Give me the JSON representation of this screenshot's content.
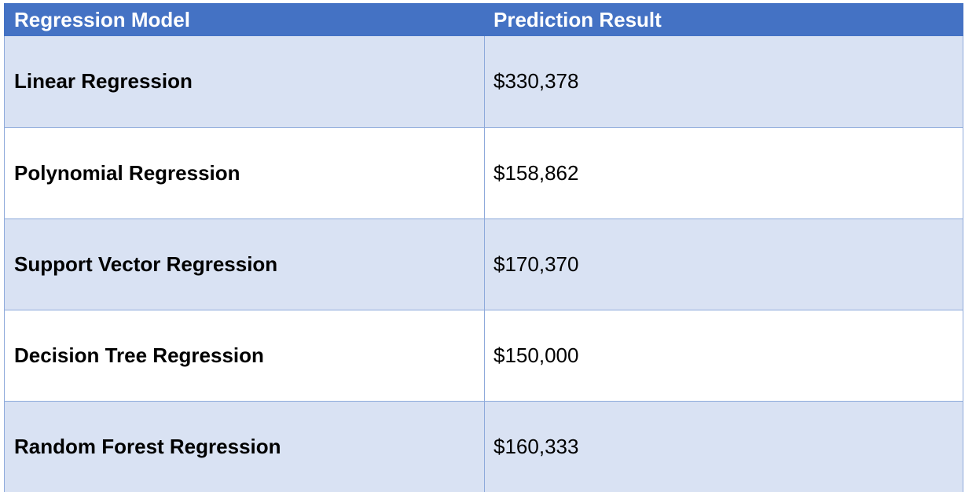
{
  "table": {
    "headers": {
      "model": "Regression Model",
      "result": "Prediction Result"
    },
    "rows": [
      {
        "model": "Linear Regression",
        "result": "$330,378"
      },
      {
        "model": "Polynomial Regression",
        "result": "$158,862"
      },
      {
        "model": "Support Vector Regression",
        "result": "$170,370"
      },
      {
        "model": "Decision Tree Regression",
        "result": "$150,000"
      },
      {
        "model": "Random Forest Regression",
        "result": "$160,333"
      }
    ]
  },
  "colors": {
    "header_bg": "#4472c4",
    "header_text": "#ffffff",
    "band_row_bg": "#d9e2f3",
    "plain_row_bg": "#ffffff",
    "grid_line": "#8eaadb"
  }
}
